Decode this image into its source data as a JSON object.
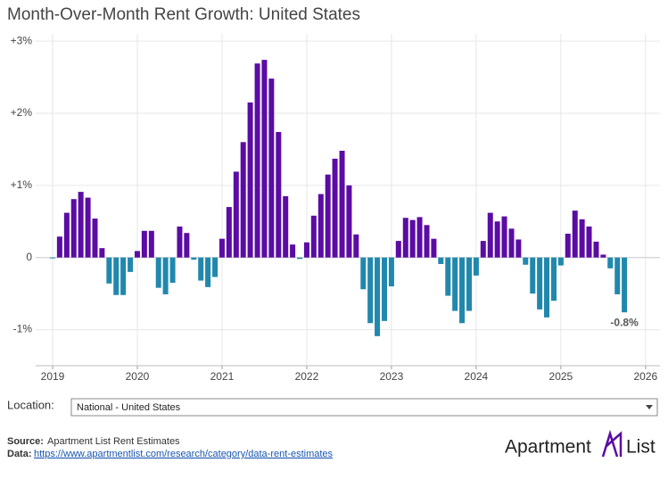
{
  "chart_data": {
    "type": "bar",
    "title": "Month-Over-Month Rent Growth: United States",
    "x": [
      2019,
      2019.083,
      2019.167,
      2019.25,
      2019.333,
      2019.417,
      2019.5,
      2019.583,
      2019.667,
      2019.75,
      2019.833,
      2019.917,
      2020,
      2020.083,
      2020.167,
      2020.25,
      2020.333,
      2020.417,
      2020.5,
      2020.583,
      2020.667,
      2020.75,
      2020.833,
      2020.917,
      2021,
      2021.083,
      2021.167,
      2021.25,
      2021.333,
      2021.417,
      2021.5,
      2021.583,
      2021.667,
      2021.75,
      2021.833,
      2021.917,
      2022,
      2022.083,
      2022.167,
      2022.25,
      2022.333,
      2022.417,
      2022.5,
      2022.583,
      2022.667,
      2022.75,
      2022.833,
      2022.917,
      2023,
      2023.083,
      2023.167,
      2023.25,
      2023.333,
      2023.417,
      2023.5,
      2023.583,
      2023.667,
      2023.75,
      2023.833,
      2023.917,
      2024,
      2024.083,
      2024.167,
      2024.25,
      2024.333,
      2024.417,
      2024.5,
      2024.583,
      2024.667,
      2024.75,
      2024.833,
      2024.917,
      2025,
      2025.083,
      2025.167,
      2025.25,
      2025.333,
      2025.417,
      2025.5,
      2025.583,
      2025.667,
      2025.75
    ],
    "values": [
      -0.01,
      0.29,
      0.62,
      0.81,
      0.91,
      0.83,
      0.54,
      0.13,
      -0.36,
      -0.52,
      -0.52,
      -0.2,
      0.09,
      0.37,
      0.37,
      -0.42,
      -0.51,
      -0.35,
      0.43,
      0.34,
      -0.03,
      -0.32,
      -0.41,
      -0.27,
      0.26,
      0.7,
      1.19,
      1.6,
      2.15,
      2.69,
      2.74,
      2.48,
      1.74,
      0.85,
      0.18,
      -0.02,
      0.21,
      0.58,
      0.88,
      1.15,
      1.37,
      1.48,
      1.0,
      0.32,
      -0.44,
      -0.91,
      -1.09,
      -0.88,
      -0.4,
      0.23,
      0.55,
      0.52,
      0.56,
      0.45,
      0.26,
      -0.09,
      -0.53,
      -0.74,
      -0.91,
      -0.74,
      -0.25,
      0.23,
      0.62,
      0.5,
      0.57,
      0.4,
      0.25,
      -0.1,
      -0.5,
      -0.72,
      -0.83,
      -0.6,
      -0.11,
      0.33,
      0.65,
      0.53,
      0.43,
      0.22,
      0.04,
      -0.15,
      -0.51,
      -0.76
    ],
    "value_labels": [
      null,
      null,
      null,
      null,
      null,
      null,
      null,
      null,
      null,
      null,
      null,
      null,
      null,
      null,
      null,
      null,
      null,
      null,
      null,
      null,
      null,
      null,
      null,
      null,
      null,
      null,
      null,
      null,
      null,
      null,
      null,
      null,
      null,
      null,
      null,
      null,
      null,
      null,
      null,
      null,
      null,
      null,
      null,
      null,
      null,
      null,
      null,
      null,
      null,
      null,
      null,
      null,
      null,
      null,
      null,
      null,
      null,
      null,
      null,
      null,
      null,
      null,
      null,
      null,
      null,
      null,
      null,
      null,
      null,
      null,
      null,
      null,
      null,
      null,
      null,
      null,
      null,
      null,
      null,
      null,
      null,
      "-0.8%"
    ],
    "positive_color": "#5a0ca3",
    "negative_color": "#2188ad",
    "xlim": [
      2018.8,
      2026.17
    ],
    "xticks": [
      2019,
      2020,
      2021,
      2022,
      2023,
      2024,
      2025,
      2026
    ],
    "ylim": [
      -1.5,
      3.1
    ],
    "yticks": [
      {
        "value": 3,
        "label": "+3%"
      },
      {
        "value": 2,
        "label": "+2%"
      },
      {
        "value": 1,
        "label": "+1%"
      },
      0,
      {
        "value": -1,
        "label": "-1%"
      }
    ],
    "grid": true
  },
  "location_label": "Location:",
  "location_value": "National - United States",
  "source_label": "Source:",
  "source": "Apartment List Rent Estimates",
  "data_label": "Data:",
  "data_url": "https://www.apartmentlist.com/research/category/data-rent-estimates",
  "logo": [
    "Apartment",
    "List"
  ]
}
